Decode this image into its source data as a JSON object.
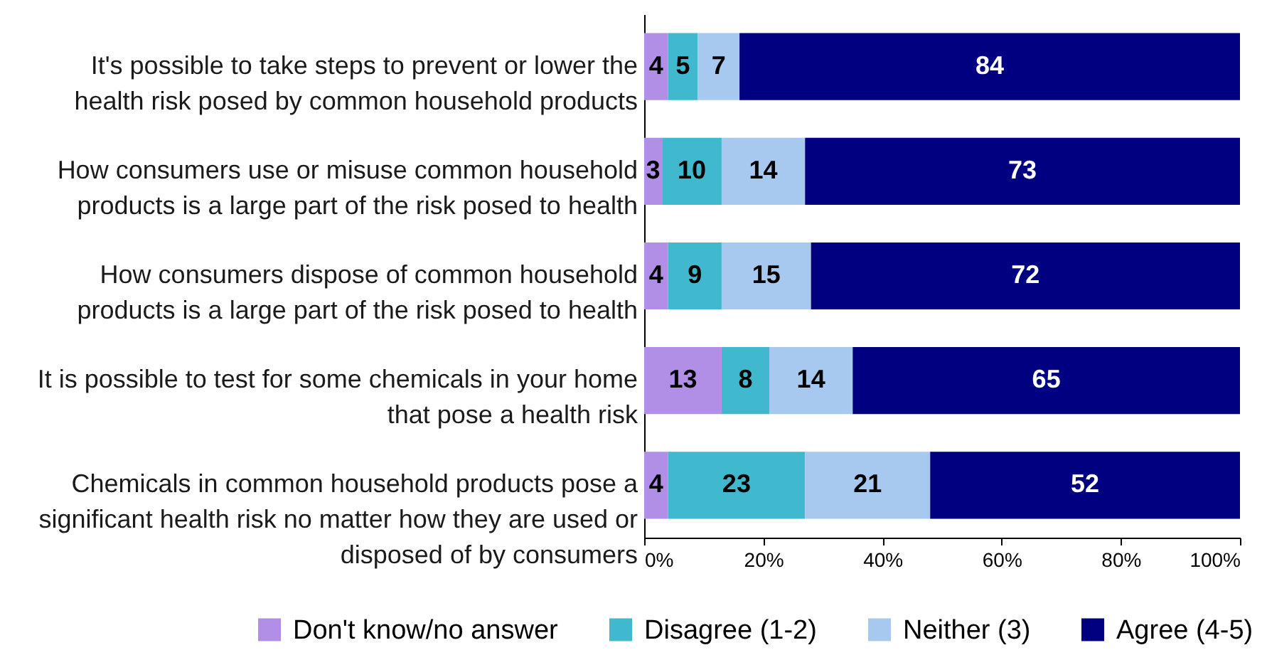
{
  "chart_data": {
    "type": "bar",
    "orientation": "horizontal",
    "stacked": true,
    "categories": [
      "It's possible to take steps to prevent or lower the health risk posed by common household products",
      "How consumers use or misuse common household products is a large part of the risk posed to health",
      "How consumers dispose of common household products is a large part of the risk posed to health",
      "It is possible to test for some chemicals in your home that pose a health risk",
      "Chemicals in common household products pose a significant health risk no matter how they are used or disposed of by consumers"
    ],
    "series": [
      {
        "name": "Don't know/no answer",
        "color": "#b18fe6",
        "values": [
          4,
          3,
          4,
          13,
          4
        ]
      },
      {
        "name": "Disagree (1-2)",
        "color": "#40b8cd",
        "values": [
          5,
          10,
          9,
          8,
          23
        ]
      },
      {
        "name": "Neither (3)",
        "color": "#a8c9ef",
        "values": [
          7,
          14,
          15,
          14,
          21
        ]
      },
      {
        "name": "Agree (4-5)",
        "color": "#000080",
        "values": [
          84,
          73,
          72,
          65,
          52
        ]
      }
    ],
    "xlim": [
      0,
      100
    ],
    "xticks": [
      {
        "value": 0,
        "label": "0%"
      },
      {
        "value": 20,
        "label": "20%"
      },
      {
        "value": 40,
        "label": "40%"
      },
      {
        "value": 60,
        "label": "60%"
      },
      {
        "value": 80,
        "label": "80%"
      },
      {
        "value": 100,
        "label": "100%"
      }
    ],
    "data_labels": true,
    "legend": "bottom",
    "grid": false
  }
}
